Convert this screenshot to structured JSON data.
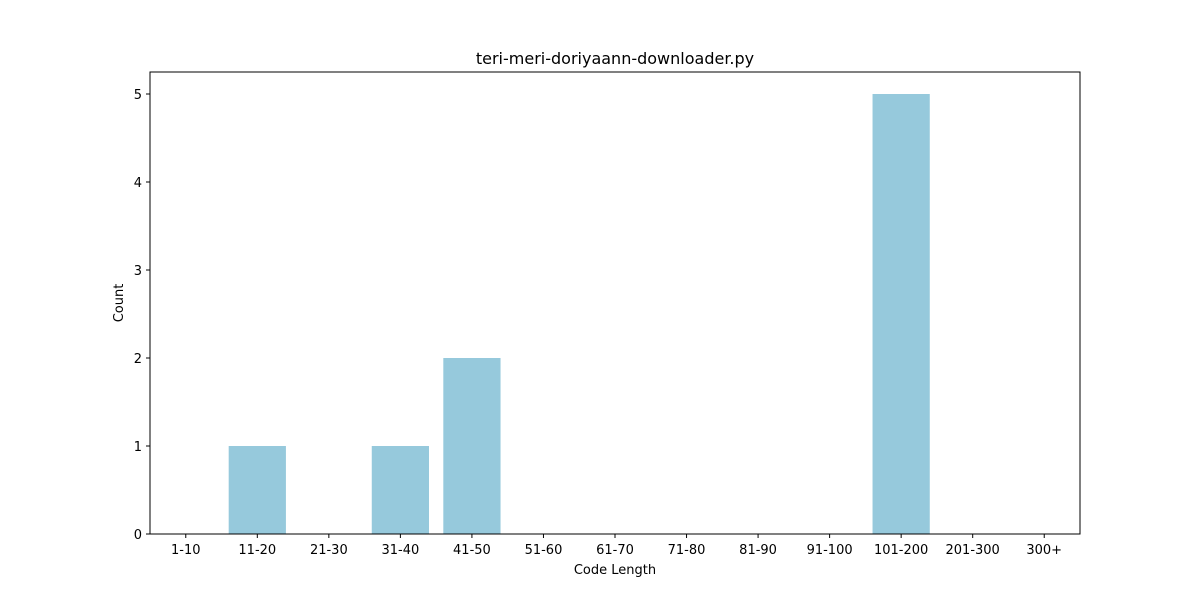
{
  "chart_data": {
    "type": "bar",
    "title": "teri-meri-doriyaann-downloader.py",
    "xlabel": "Code Length",
    "ylabel": "Count",
    "categories": [
      "1-10",
      "11-20",
      "21-30",
      "31-40",
      "41-50",
      "51-60",
      "61-70",
      "71-80",
      "81-90",
      "91-100",
      "101-200",
      "201-300",
      "300+"
    ],
    "values": [
      0,
      1,
      0,
      1,
      2,
      0,
      0,
      0,
      0,
      0,
      5,
      0,
      0
    ],
    "ylim": [
      0,
      5.25
    ],
    "yticks": [
      0,
      1,
      2,
      3,
      4,
      5
    ],
    "bar_color": "#96c9dc",
    "grid": false,
    "legend": false
  }
}
